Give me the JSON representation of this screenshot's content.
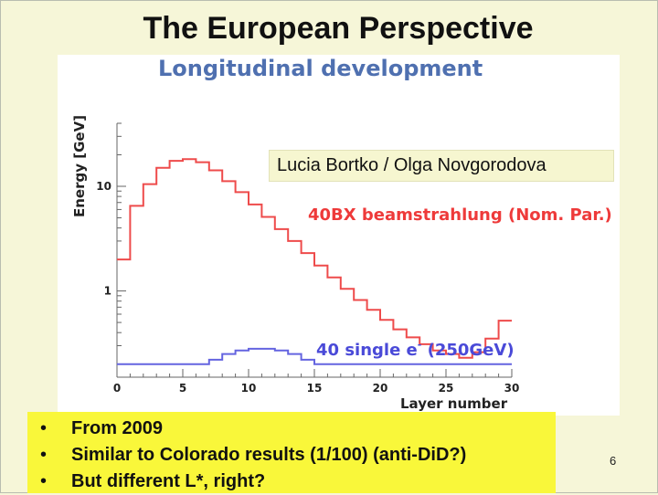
{
  "slide": {
    "title": "The European Perspective",
    "authors": "Lucia Bortko / Olga Novgorodova",
    "bullets": [
      "From 2009",
      "Similar to Colorado results (1/100) (anti-DiD?)",
      "But different L*, right?"
    ],
    "page_number": "6"
  },
  "chart_data": {
    "type": "line",
    "title": "Longitudinal development",
    "xlabel": "Layer number",
    "ylabel": "Energy [GeV]",
    "xlim": [
      0,
      30
    ],
    "ylim": [
      0.15,
      40
    ],
    "log_y": true,
    "x_ticks": [
      0,
      5,
      10,
      15,
      20,
      25,
      30
    ],
    "y_ticks": [
      1,
      10
    ],
    "grid": false,
    "legend": "none",
    "annotations": [
      {
        "text": "40BX beamstrahlung (Nom. Par.)",
        "color": "#ee3a3a"
      },
      {
        "text": "40 single e",
        "superscript": "-",
        "suffix": " (250GeV)",
        "color": "#4a4ad8"
      }
    ],
    "series": [
      {
        "color": "#ee4b4b",
        "step": true,
        "x": [
          0,
          1,
          2,
          3,
          4,
          5,
          6,
          7,
          8,
          9,
          10,
          11,
          12,
          13,
          14,
          15,
          16,
          17,
          18,
          19,
          20,
          21,
          22,
          23,
          24,
          25,
          26,
          27,
          28,
          29,
          30
        ],
        "values": [
          2.0,
          6.5,
          10.5,
          15.0,
          17.5,
          18.2,
          17.0,
          14.2,
          11.2,
          8.8,
          6.7,
          5.1,
          3.9,
          3.0,
          2.3,
          1.75,
          1.35,
          1.05,
          0.82,
          0.66,
          0.53,
          0.43,
          0.36,
          0.31,
          0.27,
          0.25,
          0.23,
          0.26,
          0.35,
          0.52,
          0.52
        ]
      },
      {
        "color": "#6464e0",
        "step": true,
        "x": [
          0,
          1,
          2,
          3,
          4,
          5,
          6,
          7,
          8,
          9,
          10,
          11,
          12,
          13,
          14,
          15,
          16,
          17,
          18,
          19,
          20,
          21,
          22,
          23,
          24,
          25,
          26,
          27,
          28,
          29,
          30
        ],
        "values": [
          0.2,
          0.2,
          0.2,
          0.2,
          0.2,
          0.2,
          0.2,
          0.22,
          0.25,
          0.27,
          0.28,
          0.28,
          0.27,
          0.25,
          0.22,
          0.2,
          0.2,
          0.2,
          0.2,
          0.2,
          0.2,
          0.2,
          0.2,
          0.2,
          0.2,
          0.2,
          0.2,
          0.2,
          0.2,
          0.2,
          0.2
        ]
      }
    ]
  }
}
